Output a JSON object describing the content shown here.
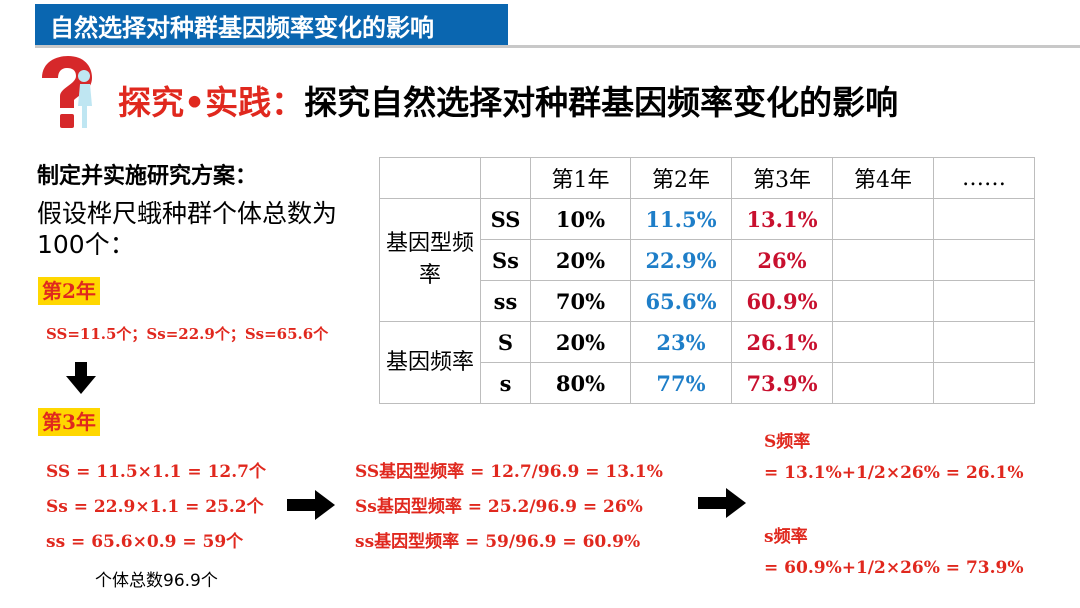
{
  "banner": {
    "title": "自然选择对种群基因频率变化的影响"
  },
  "heading": {
    "prefix": "探究•实践：",
    "text": "探究自然选择对种群基因频率变化的影响"
  },
  "left": {
    "subhead": "制定并实施研究方案：",
    "assumption": "假设桦尺蛾种群个体总数为100个：",
    "year2_tag": "第2年",
    "year2_line": "SS=11.5个；Ss=22.9个；Ss=65.6个",
    "year3_tag": "第3年",
    "year3_lines": [
      "SS = 11.5×1.1 = 12.7个",
      "Ss = 22.9×1.1 = 25.2个",
      "ss = 65.6×0.9 = 59个"
    ],
    "total": "个体总数96.9个"
  },
  "middle": {
    "lines": [
      "SS基因型频率 = 12.7/96.9 = 13.1%",
      "Ss基因型频率 = 25.2/96.9 = 26%",
      "ss基因型频率 = 59/96.9 = 60.9%"
    ]
  },
  "right": {
    "S_title": "S频率",
    "S_calc": "= 13.1%+1/2×26% = 26.1%",
    "s_title": "s频率",
    "s_calc": "= 60.9%+1/2×26% = 73.9%"
  },
  "table": {
    "headers": [
      "第1年",
      "第2年",
      "第3年",
      "第4年",
      "……"
    ],
    "group1": "基因型频率",
    "group2": "基因频率",
    "rows": [
      {
        "label": "SS",
        "y1": "10%",
        "y2": "11.5%",
        "y3": "13.1%"
      },
      {
        "label": "Ss",
        "y1": "20%",
        "y2": "22.9%",
        "y3": "26%"
      },
      {
        "label": "ss",
        "y1": "70%",
        "y2": "65.6%",
        "y3": "60.9%"
      },
      {
        "label": "S",
        "y1": "20%",
        "y2": "23%",
        "y3": "26.1%"
      },
      {
        "label": "s",
        "y1": "80%",
        "y2": "77%",
        "y3": "73.9%"
      }
    ]
  },
  "colors": {
    "banner": "#0a66b0",
    "red": "#e0281e",
    "blue": "#1e7ec8",
    "highlight": "#ffd700"
  }
}
